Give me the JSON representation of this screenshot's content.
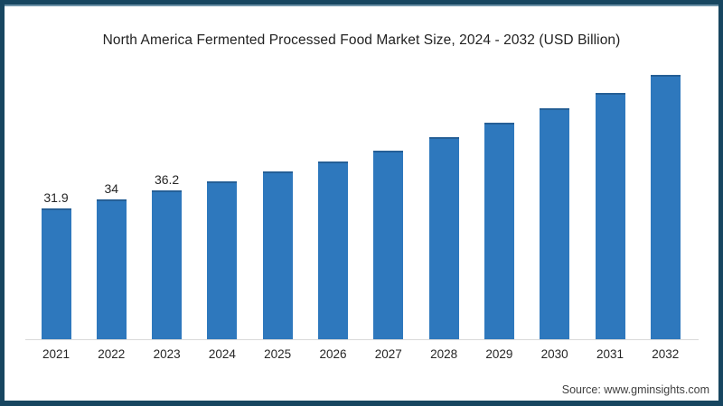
{
  "frame": {
    "border_color": "#174660",
    "top_accent_color": "#6e93a9",
    "background": "#ffffff"
  },
  "chart_data": {
    "type": "bar",
    "title": "North America Fermented Processed Food Market Size, 2024 - 2032 (USD Billion)",
    "categories": [
      "2021",
      "2022",
      "2023",
      "2024",
      "2025",
      "2026",
      "2027",
      "2028",
      "2029",
      "2030",
      "2031",
      "2032"
    ],
    "values": [
      31.9,
      34,
      36.2,
      38.4,
      40.8,
      43.3,
      46.0,
      49.3,
      52.7,
      56.3,
      60.1,
      64.3
    ],
    "data_labels": [
      "31.9",
      "34",
      "36.2",
      "",
      "",
      "",
      "",
      "",
      "",
      "",
      "",
      ""
    ],
    "xlabel": "",
    "ylabel": "",
    "ylim": [
      0,
      70
    ],
    "grid": false,
    "legend": "none",
    "bar_color": "#2e78bd",
    "bar_top_edge_color": "#255f96",
    "axis_line_color": "#d9d9d9",
    "label_color": "#262626"
  },
  "source": {
    "text": "Source: www.gminsights.com"
  }
}
